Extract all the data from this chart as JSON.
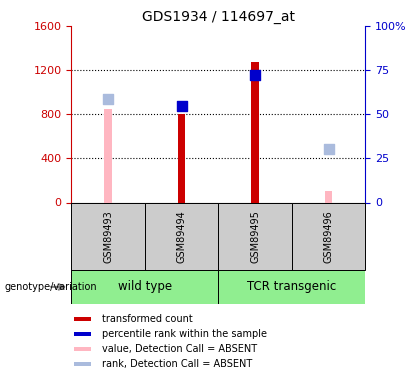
{
  "title": "GDS1934 / 114697_at",
  "samples": [
    "GSM89493",
    "GSM89494",
    "GSM89495",
    "GSM89496"
  ],
  "bar_values": [
    null,
    800,
    1280,
    null
  ],
  "bar_color": "#CC0000",
  "bar_absent_values": [
    850,
    null,
    null,
    100
  ],
  "bar_absent_color": "#FFB6C1",
  "rank_present_values": [
    null,
    880,
    1160,
    null
  ],
  "rank_present_color": "#0000CC",
  "rank_absent_values": [
    940,
    null,
    null,
    490
  ],
  "rank_absent_color": "#AABBDD",
  "ylim_left": [
    0,
    1600
  ],
  "ylim_right": [
    0,
    100
  ],
  "yticks_left": [
    0,
    400,
    800,
    1200,
    1600
  ],
  "yticks_right": [
    0,
    25,
    50,
    75,
    100
  ],
  "ytick_labels_right": [
    "0",
    "25",
    "50",
    "75",
    "100%"
  ],
  "left_axis_color": "#CC0000",
  "right_axis_color": "#0000CC",
  "bar_width": 0.1,
  "rank_marker_size": 60,
  "group_wt_color": "#90EE90",
  "group_tcr_color": "#90EE90",
  "gray_box_color": "#CCCCCC",
  "legend_items": [
    {
      "label": "transformed count",
      "color": "#CC0000"
    },
    {
      "label": "percentile rank within the sample",
      "color": "#0000CC"
    },
    {
      "label": "value, Detection Call = ABSENT",
      "color": "#FFB6C1"
    },
    {
      "label": "rank, Detection Call = ABSENT",
      "color": "#AABBDD"
    }
  ]
}
